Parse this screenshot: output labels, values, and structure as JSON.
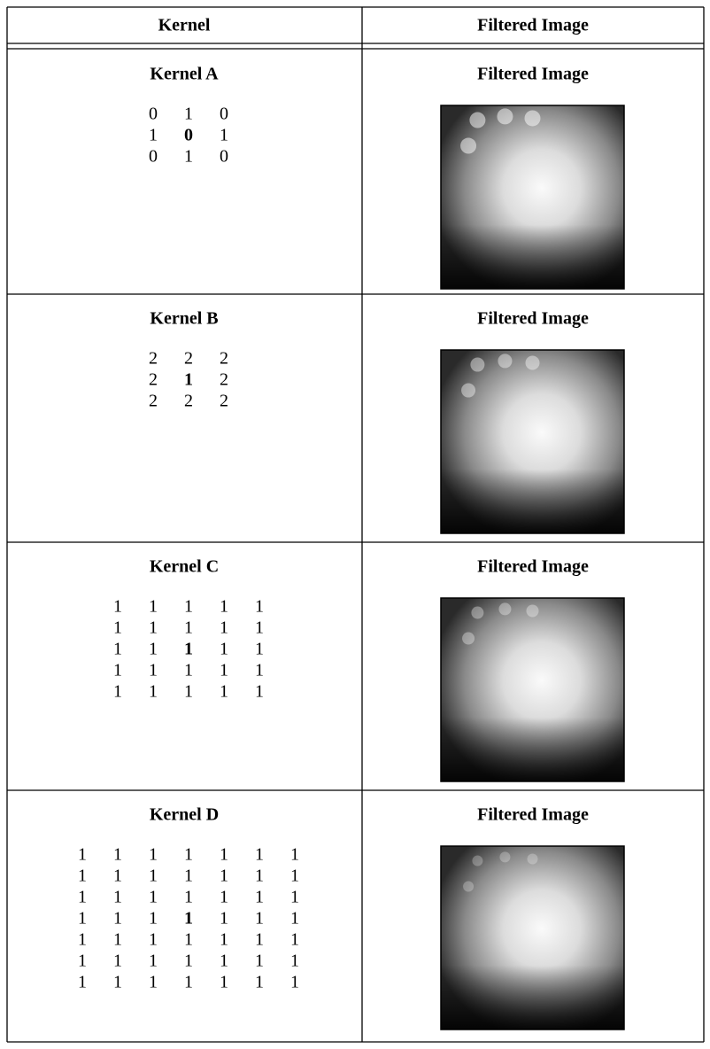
{
  "header": {
    "columns": [
      "Kernel",
      "Filtered Image"
    ]
  },
  "rows": [
    {
      "kernel": "Kernel A",
      "matrix": [
        [
          0,
          1,
          0
        ],
        [
          1,
          0,
          1
        ],
        [
          0,
          1,
          0
        ]
      ],
      "image_caption": "Filtered Image"
    },
    {
      "kernel": "Kernel B",
      "matrix": [
        [
          2,
          2,
          2
        ],
        [
          2,
          1,
          2
        ],
        [
          2,
          2,
          2
        ]
      ],
      "image_caption": "Filtered Image"
    },
    {
      "kernel": "Kernel C",
      "matrix": [
        [
          1,
          1,
          1,
          1,
          1
        ],
        [
          1,
          1,
          1,
          1,
          1
        ],
        [
          1,
          1,
          1,
          1,
          1
        ],
        [
          1,
          1,
          1,
          1,
          1
        ],
        [
          1,
          1,
          1,
          1,
          1
        ]
      ],
      "image_caption": "Filtered Image"
    },
    {
      "kernel": "Kernel D",
      "matrix": [
        [
          1,
          1,
          1,
          1,
          1,
          1,
          1
        ],
        [
          1,
          1,
          1,
          1,
          1,
          1,
          1
        ],
        [
          1,
          1,
          1,
          1,
          1,
          1,
          1
        ],
        [
          1,
          1,
          1,
          1,
          1,
          1,
          1
        ],
        [
          1,
          1,
          1,
          1,
          1,
          1,
          1
        ],
        [
          1,
          1,
          1,
          1,
          1,
          1,
          1
        ],
        [
          1,
          1,
          1,
          1,
          1,
          1,
          1
        ]
      ],
      "image_caption": "Filtered Image"
    }
  ]
}
